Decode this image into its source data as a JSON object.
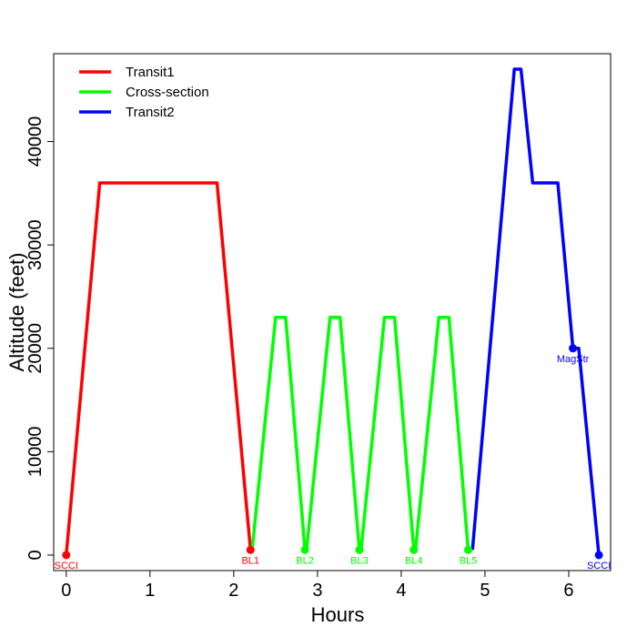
{
  "chart_data": {
    "type": "line",
    "title": "",
    "xlabel": "Hours",
    "ylabel": "Altitude (feet)",
    "xlim": [
      -0.15,
      6.5
    ],
    "ylim": [
      -1500,
      48500
    ],
    "x_ticks": [
      0,
      1,
      2,
      3,
      4,
      5,
      6
    ],
    "x_tick_labels": [
      "0",
      "1",
      "2",
      "3",
      "4",
      "5",
      "6"
    ],
    "y_ticks": [
      0,
      10000,
      20000,
      30000,
      40000
    ],
    "y_tick_labels": [
      "0",
      "10000",
      "20000",
      "30000",
      "40000"
    ],
    "grid": false,
    "legend_position": "top-left",
    "series": [
      {
        "name": "Transit1",
        "color": "#ff0000",
        "x": [
          0,
          0.4,
          1.8,
          2.2
        ],
        "y": [
          0,
          36000,
          36000,
          500
        ]
      },
      {
        "name": "Cross-section",
        "color": "#00ff00",
        "x": [
          2.22,
          2.5,
          2.62,
          2.85,
          2.87,
          3.15,
          3.27,
          3.5,
          3.52,
          3.8,
          3.92,
          4.15,
          4.17,
          4.45,
          4.57,
          4.8
        ],
        "y": [
          500,
          23000,
          23000,
          500,
          500,
          23000,
          23000,
          500,
          500,
          23000,
          23000,
          500,
          500,
          23000,
          23000,
          500
        ]
      },
      {
        "name": "Transit2",
        "color": "#0000ff",
        "x": [
          4.85,
          5.35,
          5.43,
          5.57,
          5.87,
          6.05,
          6.12,
          6.36
        ],
        "y": [
          500,
          47000,
          47000,
          36000,
          36000,
          20000,
          20000,
          0
        ]
      }
    ],
    "points": [
      {
        "label": "SCCI",
        "x": 0,
        "y": 0,
        "color": "#ff0000"
      },
      {
        "label": "BL1",
        "x": 2.2,
        "y": 500,
        "color": "#ff0000"
      },
      {
        "label": "BL2",
        "x": 2.85,
        "y": 500,
        "color": "#00ff00"
      },
      {
        "label": "BL3",
        "x": 3.5,
        "y": 500,
        "color": "#00ff00"
      },
      {
        "label": "BL4",
        "x": 4.15,
        "y": 500,
        "color": "#00ff00"
      },
      {
        "label": "BL5",
        "x": 4.8,
        "y": 500,
        "color": "#00ff00"
      },
      {
        "label": "MagStr",
        "x": 6.05,
        "y": 20000,
        "color": "#0000ff"
      },
      {
        "label": "SCCI",
        "x": 6.36,
        "y": 0,
        "color": "#0000ff"
      }
    ]
  }
}
